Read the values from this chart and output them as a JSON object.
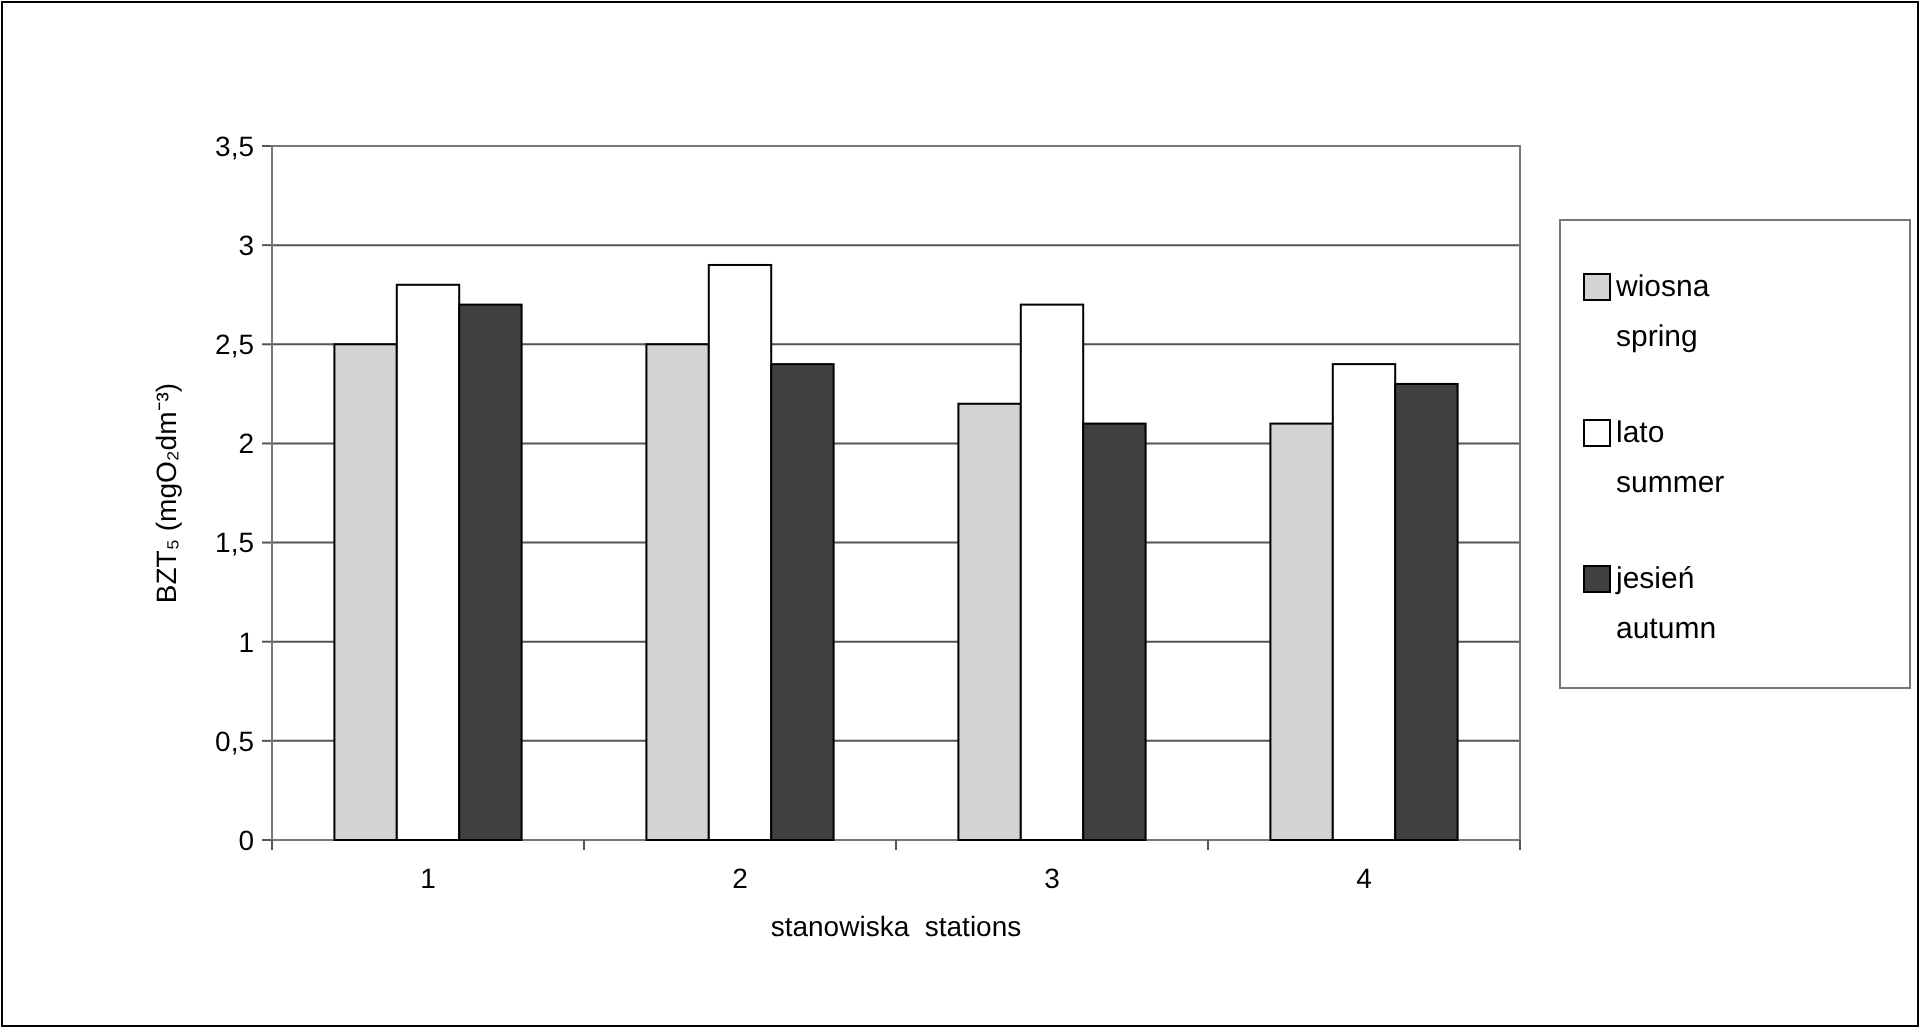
{
  "chart_data": {
    "type": "bar",
    "xlabel": "stanowiska  stations",
    "ylabel": "BZT₅ (mgO₂dm⁻³)",
    "categories": [
      "1",
      "2",
      "3",
      "4"
    ],
    "series": [
      {
        "name": "wiosna spring",
        "color": "#d3d3d3",
        "values": [
          2.5,
          2.5,
          2.2,
          2.1
        ]
      },
      {
        "name": "lato summer",
        "color": "#ffffff",
        "values": [
          2.8,
          2.9,
          2.7,
          2.4
        ]
      },
      {
        "name": "jesień autumn",
        "color": "#404040",
        "values": [
          2.7,
          2.4,
          2.1,
          2.3
        ]
      }
    ],
    "ylim": [
      0,
      3.5
    ],
    "yticks": [
      0,
      {
        "value": 0.5,
        "label": "0,5"
      },
      1,
      {
        "value": 1.5,
        "label": "1,5"
      },
      2,
      {
        "value": 2.5,
        "label": "2,5"
      },
      3,
      {
        "value": 3.5,
        "label": "3,5"
      }
    ],
    "grid": "y",
    "legend": "right"
  }
}
